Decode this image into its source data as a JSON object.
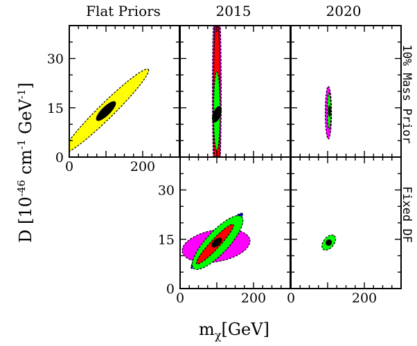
{
  "column_titles": [
    "Flat Priors",
    "2015",
    "2020"
  ],
  "row_labels": [
    "10% Mass Prior",
    "Fixed DF"
  ],
  "x_axis": {
    "label_main": "m",
    "label_sub": "χ",
    "label_unit": "[GeV]",
    "ticks": [
      0,
      200
    ],
    "range": [
      0,
      300
    ]
  },
  "y_axis": {
    "label_prefix": "D  [10",
    "label_exp": "-46",
    "label_unit": " cm",
    "label_exp2": "-1",
    "label_suffix": " GeV",
    "label_exp3": "-1",
    "label_close": "]",
    "ticks": [
      0,
      15,
      30
    ],
    "range": [
      0,
      40
    ]
  },
  "colors": {
    "yellow": "#ffff00",
    "magenta": "#ff00ff",
    "blue": "#0000ff",
    "red": "#ff0000",
    "green": "#00ff00",
    "outline": "#000000"
  },
  "chart_data": {
    "type": "scatter",
    "note_kind": "nested credible-region ellipses per panel",
    "panels": [
      {
        "id": "flat-priors-10pct-mass",
        "row": 0,
        "col": 0,
        "regions": [
          {
            "color": "yellow",
            "cx": 100,
            "cy": 14,
            "rx": 116,
            "ry": 2.3,
            "angle_dir": [
              100,
              11
            ]
          },
          {
            "color": "black",
            "cx": 100,
            "cy": 14,
            "rx": 25,
            "ry": 1.2,
            "angle_dir": [
              100,
              11
            ]
          }
        ]
      },
      {
        "id": "2015-10pct-mass",
        "row": 0,
        "col": 1,
        "regions": [
          {
            "color": "magenta",
            "cx": 100,
            "cy": 20,
            "rx": 12,
            "ry": 34,
            "angle_dir": [
              0,
              1
            ]
          },
          {
            "color": "blue",
            "cx": 100,
            "cy": 20,
            "rx": 8,
            "ry": 30,
            "angle_dir": [
              0,
              1
            ]
          },
          {
            "color": "red",
            "cx": 100,
            "cy": 17,
            "rx": 9,
            "ry": 26,
            "angle_dir": [
              0,
              1
            ]
          },
          {
            "color": "green",
            "cx": 100,
            "cy": 14,
            "rx": 9,
            "ry": 12,
            "angle_dir": [
              0,
              1
            ]
          },
          {
            "color": "black",
            "cx": 100,
            "cy": 13,
            "rx": 8,
            "ry": 1.1,
            "angle_dir": [
              10,
              3
            ]
          }
        ]
      },
      {
        "id": "2020-10pct-mass",
        "row": 0,
        "col": 2,
        "regions": [
          {
            "color": "magenta",
            "cx": 102,
            "cy": 13.5,
            "rx": 8.5,
            "ry": 8,
            "angle_dir": [
              0,
              1
            ]
          },
          {
            "color": "green",
            "cx": 104,
            "cy": 14,
            "rx": 5,
            "ry": 5.5,
            "angle_dir": [
              0,
              1
            ]
          },
          {
            "color": "black",
            "cx": 105,
            "cy": 14,
            "rx": 2.2,
            "ry": 1.6,
            "angle_dir": [
              0,
              1
            ]
          }
        ]
      },
      {
        "id": "2015-fixed-df",
        "row": 1,
        "col": 1,
        "regions": [
          {
            "color": "magenta",
            "cx": 98,
            "cy": 13,
            "rx": 92,
            "ry": 4.8,
            "angle_dir": [
              100,
              2
            ]
          },
          {
            "color": "blue",
            "cx": 100,
            "cy": 14.5,
            "rx": 70,
            "ry": 1.7,
            "angle_dir": [
              100,
              12
            ]
          },
          {
            "color": "green",
            "cx": 102,
            "cy": 14,
            "rx": 66,
            "ry": 3.4,
            "angle_dir": [
              100,
              12
            ]
          },
          {
            "color": "red",
            "cx": 95,
            "cy": 13.5,
            "rx": 50,
            "ry": 1.4,
            "angle_dir": [
              100,
              12
            ]
          },
          {
            "color": "black",
            "cx": 100,
            "cy": 14,
            "rx": 12,
            "ry": 0.9,
            "angle_dir": [
              100,
              10
            ]
          }
        ]
      },
      {
        "id": "2020-fixed-df",
        "row": 1,
        "col": 2,
        "regions": [
          {
            "color": "green",
            "cx": 103,
            "cy": 14,
            "rx": 15,
            "ry": 1.6,
            "angle_dir": [
              100,
              14
            ]
          },
          {
            "color": "black",
            "cx": 103,
            "cy": 14,
            "rx": 5,
            "ry": 0.8,
            "angle_dir": [
              100,
              14
            ]
          }
        ]
      }
    ]
  }
}
